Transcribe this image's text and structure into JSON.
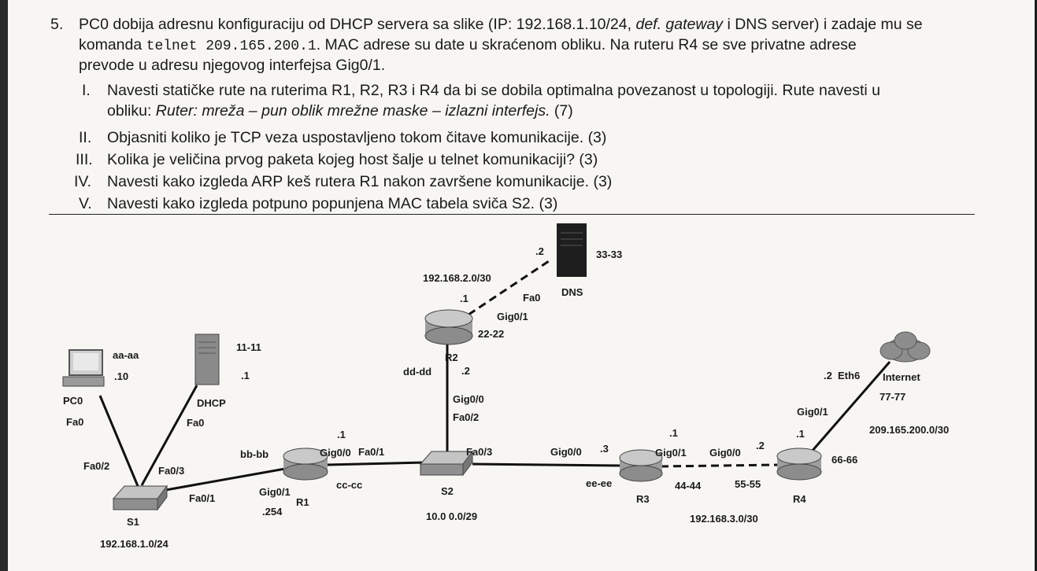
{
  "question": {
    "number": "5.",
    "line1a": "PC0 dobija adresnu konfiguraciju od DHCP servera sa slike (IP: 192.168.1.10/24, ",
    "line1b": "def. gateway",
    "line1c": " i DNS server) i zadaje mu se",
    "line2a": "komanda ",
    "line2cmd": "telnet 209.165.200.1",
    "line2b": ". MAC adrese su date u skraćenom obliku. Na ruteru R4 se sve privatne adrese",
    "line3": "prevode u adresu njegovog interfejsa Gig0/1.",
    "items": [
      {
        "roman": "I.",
        "text": "Navesti statičke rute na ruterima R1, R2, R3 i R4 da bi se dobila optimalna povezanost u topologiji. Rute navesti u"
      },
      {
        "roman": "II.",
        "text": "Objasniti koliko je TCP veza uspostavljeno tokom čitave komunikacije. (3)"
      },
      {
        "roman": "III.",
        "text": "Kolika je veličina prvog paketa kojeg host šalje u telnet komunikaciji? (3)"
      },
      {
        "roman": "IV.",
        "text": "Navesti kako izgleda ARP keš rutera R1 nakon završene komunikacije. (3)"
      },
      {
        "roman": "V.",
        "text": "Navesti kako izgleda potpuno popunjena MAC tabela sviča S2. (3)"
      }
    ],
    "item1_cont_a": "obliku: ",
    "item1_cont_italic": "Ruter: mreža – pun oblik mrežne maske – izlazni interfejs.",
    "item1_cont_b": " (7)"
  },
  "diagram": {
    "dns": {
      "name": "DNS",
      "mac": "33-33",
      "ip": ".2",
      "port": "Fa0"
    },
    "dns_net": "192.168.2.0/30",
    "r2": {
      "name": "R2",
      "mac": "22-22",
      "top_ip": ".1",
      "top_port": "Gig0/1",
      "bottom_ip": ".2",
      "bottom_port": "Gig0/0",
      "mac_other": "dd-dd"
    },
    "s2": {
      "name": "S2",
      "port_r2": "Fa0/2",
      "port_r1": "Fa0/1",
      "port_r3": "Fa0/3",
      "net": "10.0 0.0/29"
    },
    "r1": {
      "name": "R1",
      "g00": "Gig0/0",
      "g00_ip": ".1",
      "g01": "Gig0/1",
      "g01_ip": ".254",
      "mac_left": "bb-bb",
      "mac_right": "cc-cc"
    },
    "r3": {
      "name": "R3",
      "g00": "Gig0/0",
      "g00_ip": ".3",
      "g01": "Gig0/1",
      "g01_ip": ".1",
      "mac_left": "ee-ee",
      "mac_right": "44-44"
    },
    "r4": {
      "name": "R4",
      "g00": "Gig0/0",
      "g00_ip": ".2",
      "g01": "Gig0/1",
      "g01_ip": ".1",
      "mac_left": "55-55",
      "mac_right": "66-66"
    },
    "r3r4_net": "192.168.3.0/30",
    "internet": {
      "name": "Internet",
      "mac": "77-77",
      "port": "Eth6",
      "ip": ".2",
      "net": "209.165.200.0/30"
    },
    "pc0": {
      "name": "PC0",
      "mac": "aa-aa",
      "ip": ".10",
      "port": "Fa0"
    },
    "dhcp": {
      "name": "DHCP",
      "mac": "11-11",
      "ip": ".1",
      "port": "Fa0"
    },
    "s1": {
      "name": "S1",
      "port_pc": "Fa0/2",
      "port_dhcp": "Fa0/3",
      "port_r1": "Fa0/1",
      "net": "192.168.1.0/24"
    }
  }
}
